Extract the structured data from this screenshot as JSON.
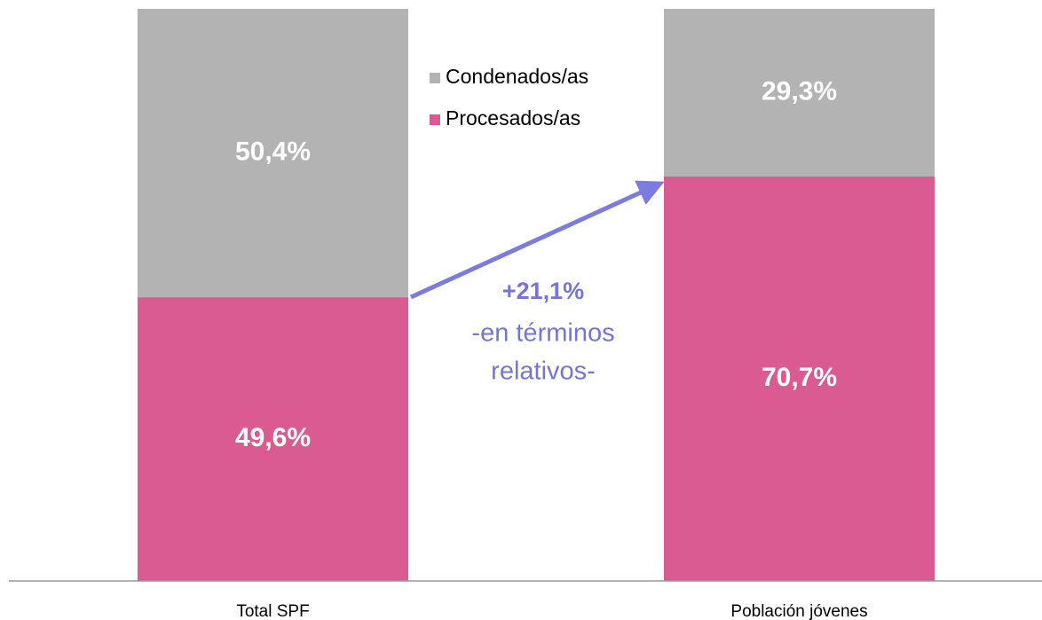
{
  "chart_data": {
    "type": "stacked_bar",
    "categories": [
      "Total SPF",
      "Población jóvenes"
    ],
    "series": [
      {
        "name": "Procesados/as",
        "color": "#d95b91",
        "values": [
          49.6,
          70.7
        ],
        "value_labels": [
          "49,6%",
          "70,7%"
        ]
      },
      {
        "name": "Condenados/as",
        "color": "#b3b3b3",
        "values": [
          50.4,
          29.3
        ],
        "value_labels": [
          "50,4%",
          "29,3%"
        ]
      }
    ],
    "ylim": [
      0,
      100
    ],
    "annotation": {
      "headline": "+21,1%",
      "lines": [
        "-en términos",
        "relativos-"
      ],
      "color": "#7474dc"
    }
  }
}
